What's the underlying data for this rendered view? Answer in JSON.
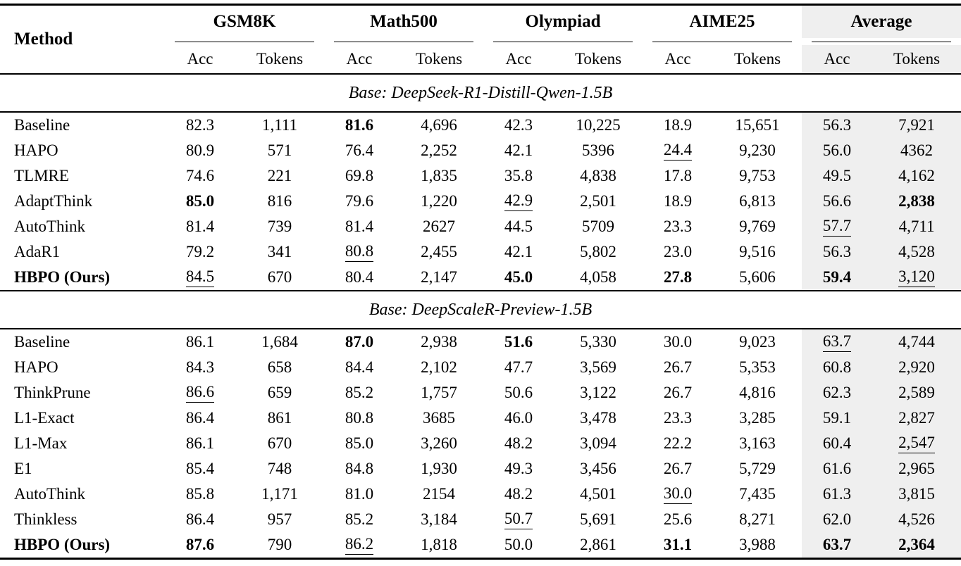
{
  "table": {
    "columns": {
      "method": "Method",
      "sub": [
        "Acc",
        "Tokens"
      ]
    },
    "groups": [
      {
        "label": "GSM8K",
        "highlight": false
      },
      {
        "label": "Math500",
        "highlight": false
      },
      {
        "label": "Olympiad",
        "highlight": false
      },
      {
        "label": "AIME25",
        "highlight": false
      },
      {
        "label": "Average",
        "highlight": true
      }
    ],
    "colors": {
      "highlight_bg": "#efefef",
      "rule": "#000000"
    },
    "sections": [
      {
        "title": "Base: DeepSeek-R1-Distill-Qwen-1.5B",
        "rows": [
          {
            "method": "Baseline",
            "method_bold": false,
            "cells": [
              {
                "v": "82.3",
                "s": ""
              },
              {
                "v": "1,111",
                "s": ""
              },
              {
                "v": "81.6",
                "s": "b"
              },
              {
                "v": "4,696",
                "s": ""
              },
              {
                "v": "42.3",
                "s": ""
              },
              {
                "v": "10,225",
                "s": ""
              },
              {
                "v": "18.9",
                "s": ""
              },
              {
                "v": "15,651",
                "s": ""
              },
              {
                "v": "56.3",
                "s": ""
              },
              {
                "v": "7,921",
                "s": ""
              }
            ]
          },
          {
            "method": "HAPO",
            "method_bold": false,
            "cells": [
              {
                "v": "80.9",
                "s": ""
              },
              {
                "v": "571",
                "s": ""
              },
              {
                "v": "76.4",
                "s": ""
              },
              {
                "v": "2,252",
                "s": ""
              },
              {
                "v": "42.1",
                "s": ""
              },
              {
                "v": "5396",
                "s": ""
              },
              {
                "v": "24.4",
                "s": "u"
              },
              {
                "v": "9,230",
                "s": ""
              },
              {
                "v": "56.0",
                "s": ""
              },
              {
                "v": "4362",
                "s": ""
              }
            ]
          },
          {
            "method": "TLMRE",
            "method_bold": false,
            "cells": [
              {
                "v": "74.6",
                "s": ""
              },
              {
                "v": "221",
                "s": ""
              },
              {
                "v": "69.8",
                "s": ""
              },
              {
                "v": "1,835",
                "s": ""
              },
              {
                "v": "35.8",
                "s": ""
              },
              {
                "v": "4,838",
                "s": ""
              },
              {
                "v": "17.8",
                "s": ""
              },
              {
                "v": "9,753",
                "s": ""
              },
              {
                "v": "49.5",
                "s": ""
              },
              {
                "v": "4,162",
                "s": ""
              }
            ]
          },
          {
            "method": "AdaptThink",
            "method_bold": false,
            "cells": [
              {
                "v": "85.0",
                "s": "b"
              },
              {
                "v": "816",
                "s": ""
              },
              {
                "v": "79.6",
                "s": ""
              },
              {
                "v": "1,220",
                "s": ""
              },
              {
                "v": "42.9",
                "s": "u"
              },
              {
                "v": "2,501",
                "s": ""
              },
              {
                "v": "18.9",
                "s": ""
              },
              {
                "v": "6,813",
                "s": ""
              },
              {
                "v": "56.6",
                "s": ""
              },
              {
                "v": "2,838",
                "s": "b"
              }
            ]
          },
          {
            "method": "AutoThink",
            "method_bold": false,
            "cells": [
              {
                "v": "81.4",
                "s": ""
              },
              {
                "v": "739",
                "s": ""
              },
              {
                "v": "81.4",
                "s": ""
              },
              {
                "v": "2627",
                "s": ""
              },
              {
                "v": "44.5",
                "s": ""
              },
              {
                "v": "5709",
                "s": ""
              },
              {
                "v": "23.3",
                "s": ""
              },
              {
                "v": "9,769",
                "s": ""
              },
              {
                "v": "57.7",
                "s": "u"
              },
              {
                "v": "4,711",
                "s": ""
              }
            ]
          },
          {
            "method": "AdaR1",
            "method_bold": false,
            "cells": [
              {
                "v": "79.2",
                "s": ""
              },
              {
                "v": "341",
                "s": ""
              },
              {
                "v": "80.8",
                "s": "u"
              },
              {
                "v": "2,455",
                "s": ""
              },
              {
                "v": "42.1",
                "s": ""
              },
              {
                "v": "5,802",
                "s": ""
              },
              {
                "v": "23.0",
                "s": ""
              },
              {
                "v": "9,516",
                "s": ""
              },
              {
                "v": "56.3",
                "s": ""
              },
              {
                "v": "4,528",
                "s": ""
              }
            ]
          },
          {
            "method": "HBPO (Ours)",
            "method_bold": true,
            "cells": [
              {
                "v": "84.5",
                "s": "u"
              },
              {
                "v": "670",
                "s": ""
              },
              {
                "v": "80.4",
                "s": ""
              },
              {
                "v": "2,147",
                "s": ""
              },
              {
                "v": "45.0",
                "s": "b"
              },
              {
                "v": "4,058",
                "s": ""
              },
              {
                "v": "27.8",
                "s": "b"
              },
              {
                "v": "5,606",
                "s": ""
              },
              {
                "v": "59.4",
                "s": "b"
              },
              {
                "v": "3,120",
                "s": "u"
              }
            ]
          }
        ]
      },
      {
        "title": "Base: DeepScaleR-Preview-1.5B",
        "rows": [
          {
            "method": "Baseline",
            "method_bold": false,
            "cells": [
              {
                "v": "86.1",
                "s": ""
              },
              {
                "v": "1,684",
                "s": ""
              },
              {
                "v": "87.0",
                "s": "b"
              },
              {
                "v": "2,938",
                "s": ""
              },
              {
                "v": "51.6",
                "s": "b"
              },
              {
                "v": "5,330",
                "s": ""
              },
              {
                "v": "30.0",
                "s": ""
              },
              {
                "v": "9,023",
                "s": ""
              },
              {
                "v": "63.7",
                "s": "u"
              },
              {
                "v": "4,744",
                "s": ""
              }
            ]
          },
          {
            "method": "HAPO",
            "method_bold": false,
            "cells": [
              {
                "v": "84.3",
                "s": ""
              },
              {
                "v": "658",
                "s": ""
              },
              {
                "v": "84.4",
                "s": ""
              },
              {
                "v": "2,102",
                "s": ""
              },
              {
                "v": "47.7",
                "s": ""
              },
              {
                "v": "3,569",
                "s": ""
              },
              {
                "v": "26.7",
                "s": ""
              },
              {
                "v": "5,353",
                "s": ""
              },
              {
                "v": "60.8",
                "s": ""
              },
              {
                "v": "2,920",
                "s": ""
              }
            ]
          },
          {
            "method": "ThinkPrune",
            "method_bold": false,
            "cells": [
              {
                "v": "86.6",
                "s": "u"
              },
              {
                "v": "659",
                "s": ""
              },
              {
                "v": "85.2",
                "s": ""
              },
              {
                "v": "1,757",
                "s": ""
              },
              {
                "v": "50.6",
                "s": ""
              },
              {
                "v": "3,122",
                "s": ""
              },
              {
                "v": "26.7",
                "s": ""
              },
              {
                "v": "4,816",
                "s": ""
              },
              {
                "v": "62.3",
                "s": ""
              },
              {
                "v": "2,589",
                "s": ""
              }
            ]
          },
          {
            "method": "L1-Exact",
            "method_bold": false,
            "cells": [
              {
                "v": "86.4",
                "s": ""
              },
              {
                "v": "861",
                "s": ""
              },
              {
                "v": "80.8",
                "s": ""
              },
              {
                "v": "3685",
                "s": ""
              },
              {
                "v": "46.0",
                "s": ""
              },
              {
                "v": "3,478",
                "s": ""
              },
              {
                "v": "23.3",
                "s": ""
              },
              {
                "v": "3,285",
                "s": ""
              },
              {
                "v": "59.1",
                "s": ""
              },
              {
                "v": "2,827",
                "s": ""
              }
            ]
          },
          {
            "method": "L1-Max",
            "method_bold": false,
            "cells": [
              {
                "v": "86.1",
                "s": ""
              },
              {
                "v": "670",
                "s": ""
              },
              {
                "v": "85.0",
                "s": ""
              },
              {
                "v": "3,260",
                "s": ""
              },
              {
                "v": "48.2",
                "s": ""
              },
              {
                "v": "3,094",
                "s": ""
              },
              {
                "v": "22.2",
                "s": ""
              },
              {
                "v": "3,163",
                "s": ""
              },
              {
                "v": "60.4",
                "s": ""
              },
              {
                "v": "2,547",
                "s": "u"
              }
            ]
          },
          {
            "method": "E1",
            "method_bold": false,
            "cells": [
              {
                "v": "85.4",
                "s": ""
              },
              {
                "v": "748",
                "s": ""
              },
              {
                "v": "84.8",
                "s": ""
              },
              {
                "v": "1,930",
                "s": ""
              },
              {
                "v": "49.3",
                "s": ""
              },
              {
                "v": "3,456",
                "s": ""
              },
              {
                "v": "26.7",
                "s": ""
              },
              {
                "v": "5,729",
                "s": ""
              },
              {
                "v": "61.6",
                "s": ""
              },
              {
                "v": "2,965",
                "s": ""
              }
            ]
          },
          {
            "method": "AutoThink",
            "method_bold": false,
            "cells": [
              {
                "v": "85.8",
                "s": ""
              },
              {
                "v": "1,171",
                "s": ""
              },
              {
                "v": "81.0",
                "s": ""
              },
              {
                "v": "2154",
                "s": ""
              },
              {
                "v": "48.2",
                "s": ""
              },
              {
                "v": "4,501",
                "s": ""
              },
              {
                "v": "30.0",
                "s": "u"
              },
              {
                "v": "7,435",
                "s": ""
              },
              {
                "v": "61.3",
                "s": ""
              },
              {
                "v": "3,815",
                "s": ""
              }
            ]
          },
          {
            "method": "Thinkless",
            "method_bold": false,
            "cells": [
              {
                "v": "86.4",
                "s": ""
              },
              {
                "v": "957",
                "s": ""
              },
              {
                "v": "85.2",
                "s": ""
              },
              {
                "v": "3,184",
                "s": ""
              },
              {
                "v": "50.7",
                "s": "u"
              },
              {
                "v": "5,691",
                "s": ""
              },
              {
                "v": "25.6",
                "s": ""
              },
              {
                "v": "8,271",
                "s": ""
              },
              {
                "v": "62.0",
                "s": ""
              },
              {
                "v": "4,526",
                "s": ""
              }
            ]
          },
          {
            "method": "HBPO (Ours)",
            "method_bold": true,
            "cells": [
              {
                "v": "87.6",
                "s": "b"
              },
              {
                "v": "790",
                "s": ""
              },
              {
                "v": "86.2",
                "s": "u"
              },
              {
                "v": "1,818",
                "s": ""
              },
              {
                "v": "50.0",
                "s": ""
              },
              {
                "v": "2,861",
                "s": ""
              },
              {
                "v": "31.1",
                "s": "b"
              },
              {
                "v": "3,988",
                "s": ""
              },
              {
                "v": "63.7",
                "s": "b"
              },
              {
                "v": "2,364",
                "s": "b"
              }
            ]
          }
        ]
      }
    ]
  }
}
